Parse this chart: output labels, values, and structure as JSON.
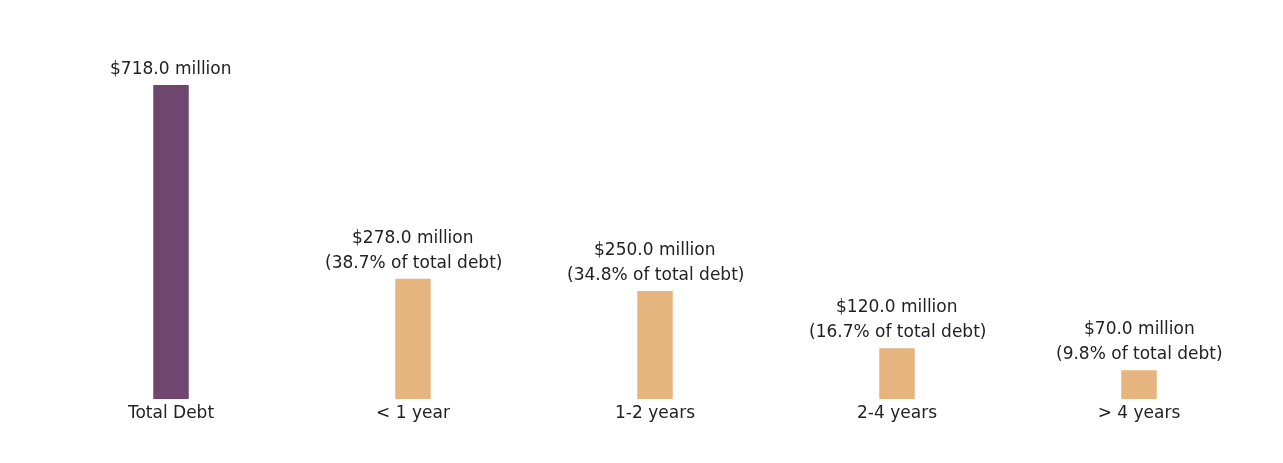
{
  "chart_data": {
    "type": "bar",
    "categories": [
      "Total Debt",
      "< 1 year",
      "1-2 years",
      "2-4 years",
      "> 4 years"
    ],
    "values": [
      718.0,
      278.0,
      250.0,
      120.0,
      70.0
    ],
    "colors": [
      "#6f466e",
      "#e6b47e",
      "#e6b47e",
      "#e6b47e",
      "#e6b47e"
    ],
    "value_labels": [
      "$718.0 million",
      "$278.0 million",
      "$250.0 million",
      "$120.0 million",
      "$70.0 million"
    ],
    "annotations": [
      {
        "text": "(38.7% of total debt)",
        "x": "< 1 year",
        "y": 278.0
      },
      {
        "text": "(34.8% of total debt)",
        "x": "1-2 years",
        "y": 250.0
      },
      {
        "text": "(16.7% of total debt)",
        "x": "2-4 years",
        "y": 120.0
      },
      {
        "text": "(9.8% of total debt)",
        "x": "> 4 years",
        "y": 70.0
      }
    ]
  }
}
